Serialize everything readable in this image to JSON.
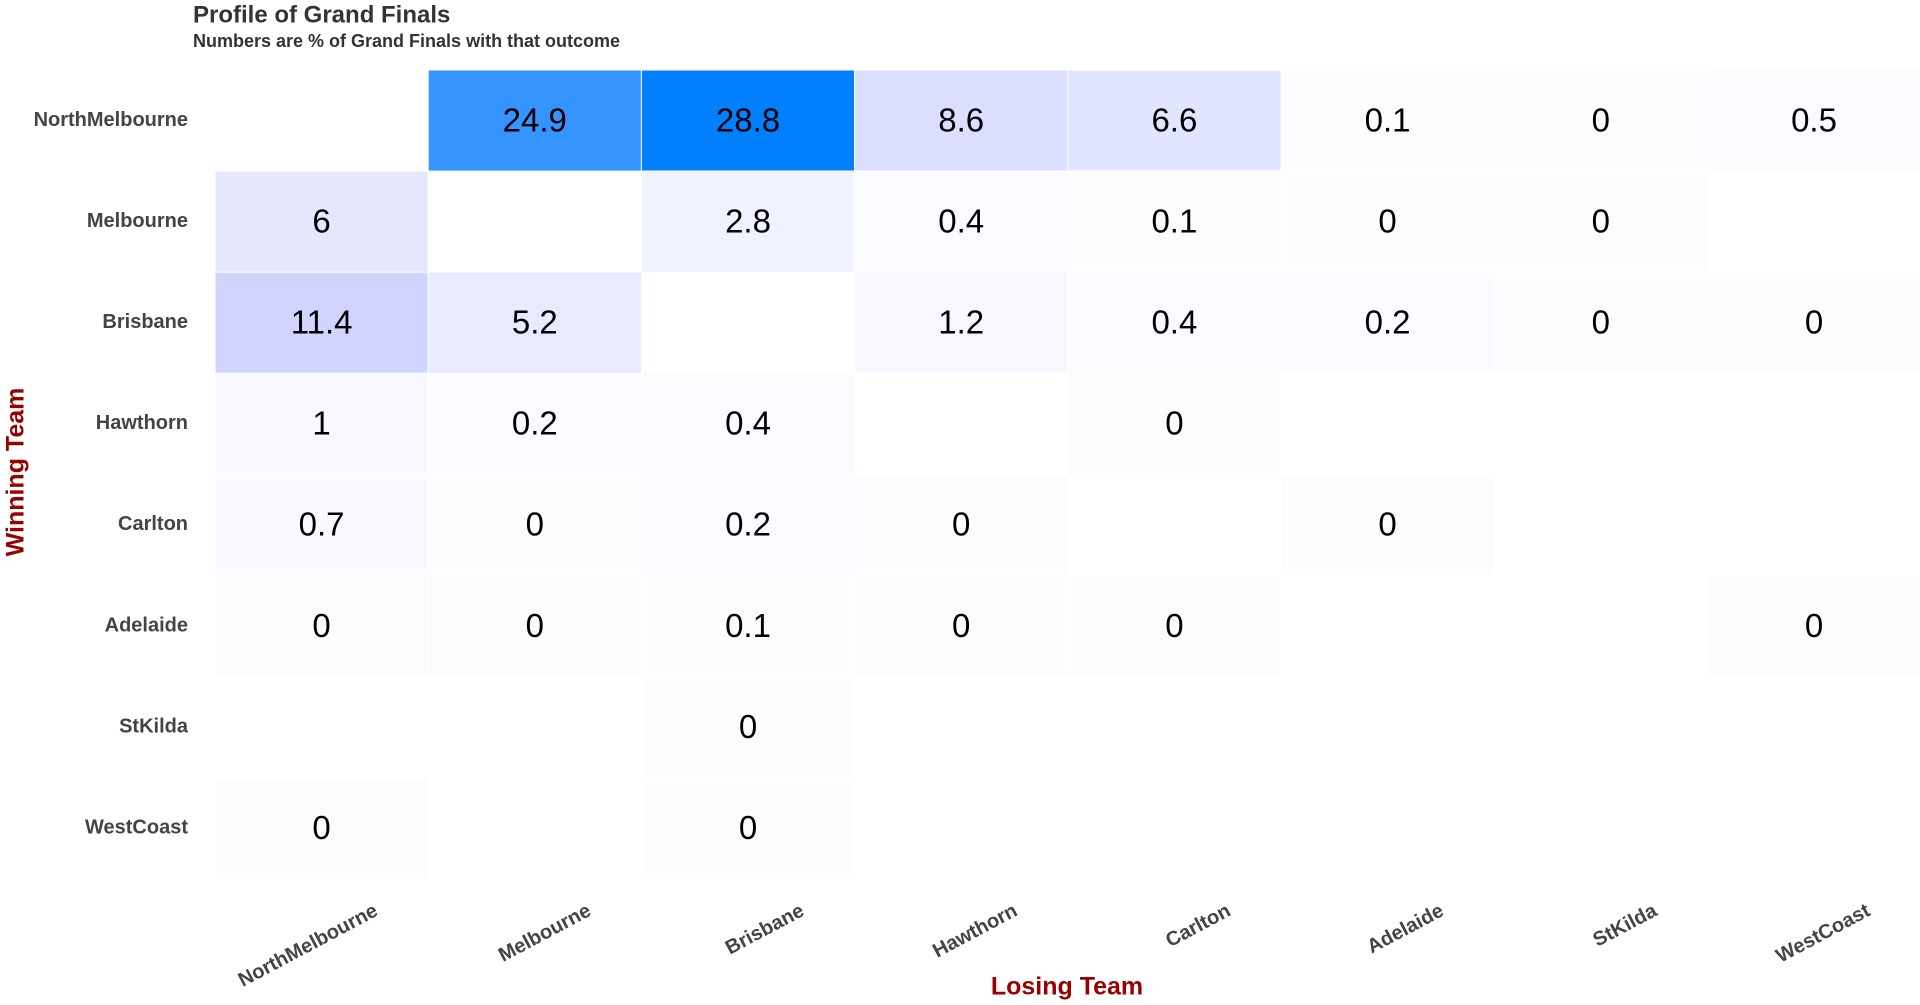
{
  "chart_data": {
    "type": "heatmap",
    "title": "Profile of Grand Finals",
    "subtitle": "Numbers are % of Grand Finals with that outcome",
    "x_label": "Losing Team",
    "y_label": "Winning Team",
    "x": [
      "NorthMelbourne",
      "Melbourne",
      "Brisbane",
      "Hawthorn",
      "Carlton",
      "Adelaide",
      "StKilda",
      "WestCoast"
    ],
    "y": [
      "NorthMelbourne",
      "Melbourne",
      "Brisbane",
      "Hawthorn",
      "Carlton",
      "Adelaide",
      "StKilda",
      "WestCoast"
    ],
    "values": [
      [
        null,
        24.9,
        28.8,
        8.6,
        6.6,
        0.1,
        0,
        0.5
      ],
      [
        6,
        null,
        2.8,
        0.4,
        0.1,
        0,
        0,
        null
      ],
      [
        11.4,
        5.2,
        null,
        1.2,
        0.4,
        0.2,
        0,
        0
      ],
      [
        1,
        0.2,
        0.4,
        null,
        0,
        null,
        null,
        null
      ],
      [
        0.7,
        0,
        0.2,
        0,
        null,
        0,
        null,
        null
      ],
      [
        0,
        0,
        0.1,
        0,
        0,
        null,
        null,
        0
      ],
      [
        null,
        null,
        0,
        null,
        null,
        null,
        null,
        null
      ],
      [
        0,
        null,
        0,
        null,
        null,
        null,
        null,
        null
      ]
    ],
    "colorscale": [
      "#fcfcff",
      "#c4c9ff",
      "#0080ff"
    ]
  }
}
